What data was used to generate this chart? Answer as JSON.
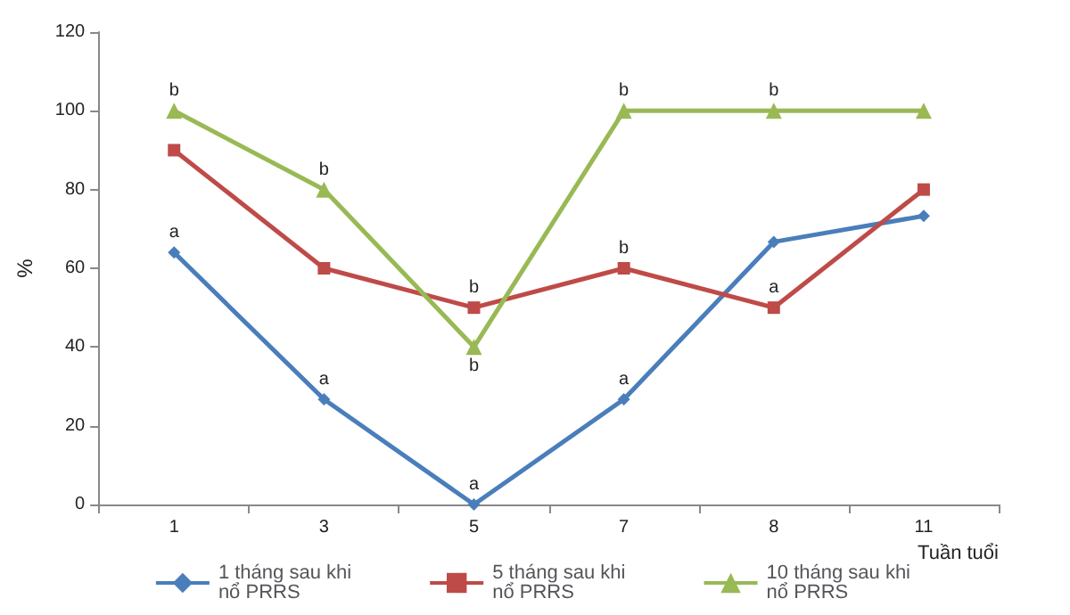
{
  "chart_data": {
    "type": "line",
    "ylabel": "%",
    "xlabel": "Tuần tuổi",
    "categories": [
      "1",
      "3",
      "5",
      "7",
      "8",
      "11"
    ],
    "ylim": [
      0,
      120
    ],
    "yticks": [
      0,
      20,
      40,
      60,
      80,
      100,
      120
    ],
    "grid": false,
    "legend": "bottom",
    "series": [
      {
        "name": "1 tháng sau khi nổ PRRS",
        "color": "#4a7ebb",
        "marker": "diamond",
        "values": [
          64,
          26.7,
          0,
          26.7,
          66.7,
          73.3
        ]
      },
      {
        "name": "5 tháng sau khi nổ PRRS",
        "color": "#be4b48",
        "marker": "square",
        "values": [
          90,
          60,
          50,
          60,
          50,
          80
        ]
      },
      {
        "name": "10 tháng sau khi nổ PRRS",
        "color": "#98b954",
        "marker": "triangle",
        "values": [
          100,
          80,
          40,
          100,
          100,
          100
        ]
      }
    ],
    "annotations": [
      {
        "text": "a",
        "x": "1",
        "y": 64
      },
      {
        "text": "b",
        "x": "1",
        "y": 100
      },
      {
        "text": "a",
        "x": "3",
        "y": 26.7
      },
      {
        "text": "b",
        "x": "3",
        "y": 80
      },
      {
        "text": "a",
        "x": "5",
        "y": 0
      },
      {
        "text": "b",
        "x": "5",
        "y": 50
      },
      {
        "text": "b",
        "x": "5",
        "y": 40
      },
      {
        "text": "a",
        "x": "7",
        "y": 26.7
      },
      {
        "text": "b",
        "x": "7",
        "y": 60
      },
      {
        "text": "b",
        "x": "7",
        "y": 100
      },
      {
        "text": "a",
        "x": "8",
        "y": 50
      },
      {
        "text": "b",
        "x": "8",
        "y": 100
      }
    ]
  }
}
